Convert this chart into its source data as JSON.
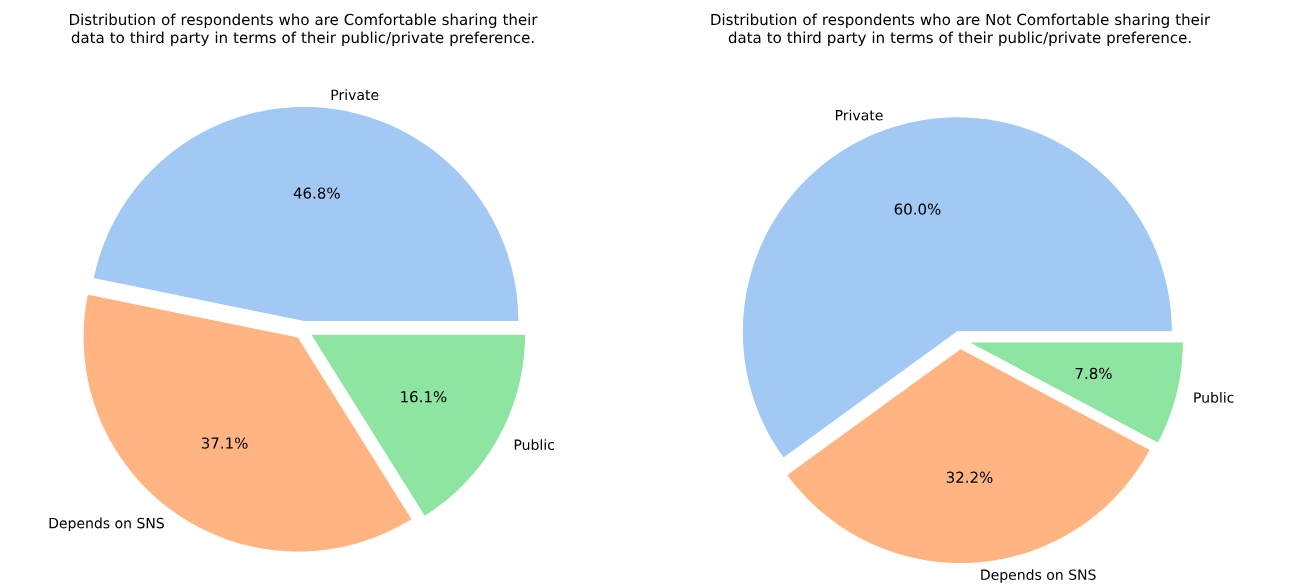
{
  "chart_data": [
    {
      "type": "pie",
      "title": "Distribution of respondents who are Comfortable sharing their data to third party in terms of their public/private preference.",
      "categories": [
        "Private",
        "Depends on SNS",
        "Public"
      ],
      "values": [
        46.8,
        37.1,
        16.1
      ],
      "colors": [
        "#a1c9f4",
        "#ffb482",
        "#8de5a1"
      ],
      "value_labels": [
        "46.8%",
        "37.1%",
        "16.1%"
      ]
    },
    {
      "type": "pie",
      "title": "Distribution of respondents who are Not Comfortable sharing their data to third party in terms of their public/private preference.",
      "categories": [
        "Private",
        "Depends on SNS",
        "Public"
      ],
      "values": [
        60.0,
        32.2,
        7.8
      ],
      "colors": [
        "#a1c9f4",
        "#ffb482",
        "#8de5a1"
      ],
      "value_labels": [
        "60.0%",
        "32.2%",
        "7.8%"
      ]
    }
  ]
}
